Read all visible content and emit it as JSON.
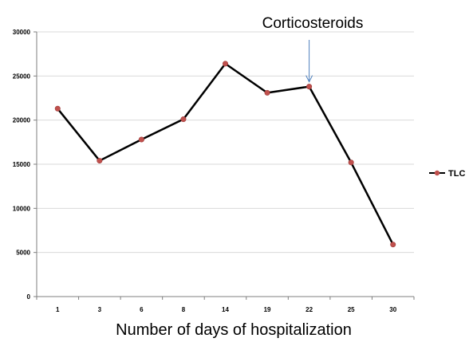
{
  "chart_data": {
    "type": "line",
    "categories": [
      "1",
      "3",
      "6",
      "8",
      "14",
      "19",
      "22",
      "25",
      "30"
    ],
    "series": [
      {
        "name": "TLC",
        "values": [
          21300,
          15400,
          17800,
          20100,
          26400,
          23100,
          23800,
          15200,
          5900
        ],
        "color": "#000000",
        "marker_color": "#c0504d"
      }
    ],
    "title": "",
    "xlabel": "Number of days of hospitalization",
    "ylabel": "",
    "ylim": [
      0,
      30000
    ],
    "yticks": [
      "0",
      "5000",
      "10000",
      "15000",
      "20000",
      "25000",
      "30000"
    ],
    "grid": true,
    "grid_color": "#d9d9d9",
    "legend": "right",
    "annotation": {
      "text": "Corticosteroids",
      "category": "22",
      "arrow_color": "#4f81bd"
    }
  }
}
